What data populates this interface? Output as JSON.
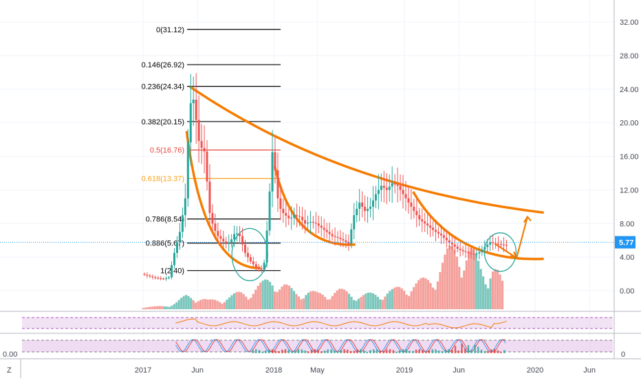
{
  "chart_data": {
    "type": "candlestick",
    "price_axis": {
      "ticks": [
        "32.00",
        "28.00",
        "24.00",
        "20.00",
        "16.00",
        "12.00",
        "8.00",
        "4.00",
        "0.00"
      ],
      "values": [
        32,
        28,
        24,
        20,
        16,
        12,
        8,
        4,
        0
      ],
      "ylim": [
        -1.6,
        35.2
      ]
    },
    "time_axis": {
      "labels": [
        "2017",
        "Jun",
        "2018",
        "May",
        "2019",
        "Jun",
        "2020",
        "Jun"
      ],
      "months_from_2017_01": [
        0,
        5,
        12,
        16,
        24,
        29,
        36,
        41
      ]
    },
    "current_price": {
      "label": "5.77",
      "value": 5.77,
      "color": "#2196f3"
    },
    "fib_levels": [
      {
        "label": "0(31.12)",
        "value": 31.12,
        "color": "#000000"
      },
      {
        "label": "0.146(26.92)",
        "value": 26.92,
        "color": "#000000"
      },
      {
        "label": "0.236(24.34)",
        "value": 24.34,
        "color": "#000000"
      },
      {
        "label": "0.382(20.15)",
        "value": 20.15,
        "color": "#000000"
      },
      {
        "label": "0.5(16.76)",
        "value": 16.76,
        "color": "#e8453c"
      },
      {
        "label": "0.618(13.37)",
        "value": 13.37,
        "color": "#f7a21b"
      },
      {
        "label": "0.786(8.54)",
        "value": 8.54,
        "color": "#000000"
      },
      {
        "label": "0.886(5.67)",
        "value": 5.67,
        "color": "#000000"
      },
      {
        "label": "1(2.40)",
        "value": 2.4,
        "color": "#000000"
      }
    ],
    "price_series": {
      "months_from_2017_01": [
        0,
        0.5,
        1,
        1.5,
        2,
        2.5,
        3,
        3.5,
        4,
        4.3,
        4.6,
        4.9,
        5.2,
        5.5,
        5.8,
        6.2,
        6.6,
        7,
        7.4,
        7.8,
        8.2,
        8.6,
        9,
        9.5,
        10,
        10.5,
        11,
        11.3,
        11.6,
        12,
        12.2,
        12.5,
        12.8,
        13.2,
        13.6,
        14,
        14.5,
        15,
        15.5,
        16,
        16.5,
        17,
        17.5,
        18,
        18.5,
        19,
        19.5,
        20,
        20.5,
        21,
        21.5,
        22,
        22.5,
        23,
        23.5,
        24,
        24.5,
        25,
        25.5,
        26,
        26.5,
        27,
        27.5,
        28,
        28.5,
        29,
        29.5,
        30,
        30.5,
        31,
        31.5,
        32,
        32.5,
        33,
        33.5
      ],
      "values": [
        2.0,
        1.8,
        1.6,
        1.5,
        1.4,
        1.6,
        4.5,
        7.0,
        11.0,
        19.0,
        24.0,
        21.5,
        18.0,
        17.0,
        16.5,
        9.5,
        7.5,
        6.5,
        6.0,
        5.5,
        6.0,
        7.0,
        6.5,
        4.5,
        3.5,
        2.8,
        2.5,
        3.5,
        9.0,
        16.5,
        15.0,
        11.0,
        9.5,
        9.0,
        8.5,
        9.0,
        8.8,
        8.0,
        8.2,
        8.0,
        7.5,
        7.0,
        6.5,
        6.3,
        6.0,
        5.6,
        9.0,
        10.5,
        9.5,
        10.0,
        11.5,
        12.5,
        12.0,
        12.8,
        12.5,
        11.5,
        10.5,
        9.5,
        8.5,
        8.0,
        7.5,
        7.0,
        6.6,
        6.0,
        5.5,
        5.0,
        4.7,
        4.5,
        4.3,
        4.6,
        5.2,
        5.77,
        5.6,
        5.5,
        5.4
      ]
    },
    "volume_series": {
      "months_from_2017_01": [
        0,
        1,
        2,
        3,
        4,
        5,
        6,
        7,
        8,
        9,
        10,
        11,
        11.5,
        12,
        12.5,
        13,
        14,
        15,
        16,
        17,
        18,
        19,
        20,
        21,
        22,
        23,
        24,
        25,
        26,
        27,
        28,
        29,
        29.5,
        30,
        30.5,
        31,
        31.5,
        32,
        32.5,
        33
      ],
      "values": [
        0.3,
        0.3,
        0.4,
        0.8,
        1.6,
        1.5,
        1.0,
        1.2,
        1.5,
        2.0,
        2.2,
        3.0,
        3.5,
        4.0,
        3.0,
        2.8,
        2.0,
        2.2,
        1.8,
        2.0,
        2.2,
        2.0,
        1.6,
        1.8,
        2.0,
        2.2,
        2.8,
        3.0,
        3.5,
        4.5,
        6.5,
        8.0,
        6.5,
        7.0,
        6.0,
        5.0,
        4.5,
        5.5,
        4.5,
        3.0
      ],
      "up_color": "#7cc7bd",
      "down_color": "#f4a09b"
    },
    "indicators": [
      {
        "panel": "rsi",
        "band_color": "#e1bee7"
      },
      {
        "panel": "stoch",
        "band_color": "#e1bee7",
        "left_label": "0.00",
        "right_label": "0"
      }
    ],
    "drawings": {
      "curve_color": "#f57c00",
      "circle_color": "#26a69a",
      "arrow_color": "#f57c00"
    },
    "legend_left_letter": "Z"
  }
}
